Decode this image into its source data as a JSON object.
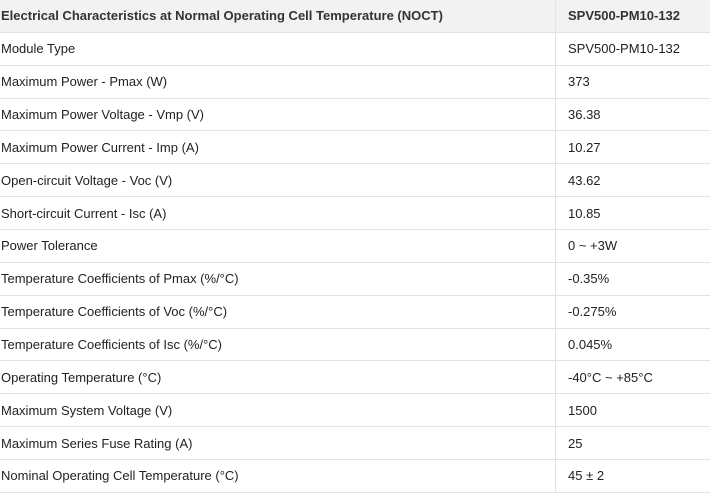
{
  "table": {
    "header": [
      "Electrical Characteristics at Normal Operating Cell Temperature (NOCT)",
      "SPV500-PM10-132"
    ],
    "rows": [
      [
        "Module Type",
        "SPV500-PM10-132"
      ],
      [
        "Maximum Power - Pmax (W)",
        "373"
      ],
      [
        "Maximum Power Voltage - Vmp (V)",
        "36.38"
      ],
      [
        "Maximum Power Current - Imp (A)",
        "10.27"
      ],
      [
        "Open-circuit Voltage - Voc (V)",
        "43.62"
      ],
      [
        "Short-circuit Current - Isc (A)",
        "10.85"
      ],
      [
        "Power Tolerance",
        "0 ~ +3W"
      ],
      [
        "Temperature Coefficients of Pmax (%/°C)",
        "-0.35%"
      ],
      [
        "Temperature Coefficients of Voc (%/°C)",
        "-0.275%"
      ],
      [
        "Temperature Coefficients of Isc (%/°C)",
        "0.045%"
      ],
      [
        "Operating Temperature (°C)",
        "-40°C ~ +85°C"
      ],
      [
        "Maximum System Voltage (V)",
        "1500"
      ],
      [
        "Maximum Series Fuse Rating (A)",
        "25"
      ],
      [
        "Nominal Operating Cell Temperature (°C)",
        "45 ± 2"
      ]
    ]
  }
}
